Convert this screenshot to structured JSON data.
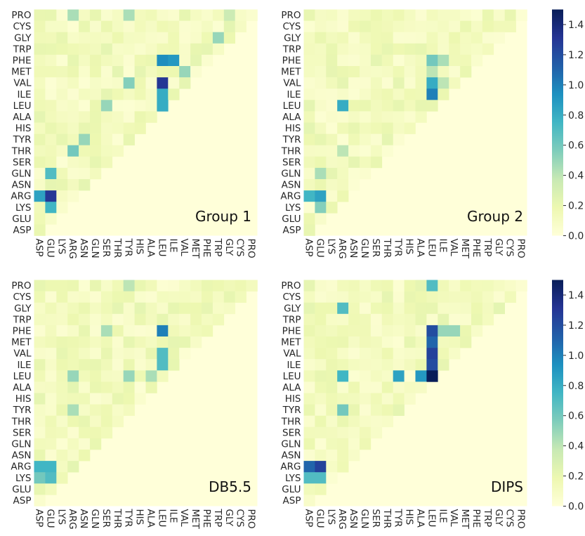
{
  "figure": {
    "residues_y_top_to_bottom": [
      "PRO",
      "CYS",
      "GLY",
      "TRP",
      "PHE",
      "MET",
      "VAL",
      "ILE",
      "LEU",
      "ALA",
      "HIS",
      "TYR",
      "THR",
      "SER",
      "GLN",
      "ASN",
      "ARG",
      "LYS",
      "GLU",
      "ASP"
    ],
    "residues_x_left_to_right": [
      "ASP",
      "GLU",
      "LYS",
      "ARG",
      "ASN",
      "GLN",
      "SER",
      "THR",
      "TYR",
      "HIS",
      "ALA",
      "LEU",
      "ILE",
      "VAL",
      "MET",
      "PHE",
      "TRP",
      "GLY",
      "CYS",
      "PRO"
    ],
    "colorbar": {
      "ticks": [
        "0.0",
        "0.2",
        "0.4",
        "0.6",
        "0.8",
        "1.0",
        "1.2",
        "1.4"
      ],
      "vmin": 0.0,
      "vmax": 1.5,
      "palette": "YlGnBu",
      "colors": [
        "#ffffd9",
        "#edf8b1",
        "#c7e9b4",
        "#7fcdbb",
        "#41b6c4",
        "#1d91c0",
        "#225ea8",
        "#253494",
        "#081d58"
      ]
    }
  },
  "chart_data": [
    {
      "type": "heatmap",
      "panel_label": "Group 1",
      "shape": "lower-triangular residue pair matrix",
      "hotspots": [
        {
          "x": "LEU",
          "y": "VAL",
          "value": 1.3
        },
        {
          "x": "LEU",
          "y": "PHE",
          "value": 0.95
        },
        {
          "x": "ILE",
          "y": "PHE",
          "value": 0.9
        },
        {
          "x": "LEU",
          "y": "ILE",
          "value": 0.8
        },
        {
          "x": "LEU",
          "y": "LEU",
          "value": 0.8
        },
        {
          "x": "GLU",
          "y": "ARG",
          "value": 1.3
        },
        {
          "x": "ASP",
          "y": "ARG",
          "value": 0.85
        },
        {
          "x": "GLU",
          "y": "LYS",
          "value": 0.75
        },
        {
          "x": "GLU",
          "y": "GLN",
          "value": 0.7
        },
        {
          "x": "ARG",
          "y": "THR",
          "value": 0.6
        },
        {
          "x": "ARG",
          "y": "PRO",
          "value": 0.45
        },
        {
          "x": "TYR",
          "y": "VAL",
          "value": 0.55
        },
        {
          "x": "TYR",
          "y": "PRO",
          "value": 0.45
        },
        {
          "x": "VAL",
          "y": "MET",
          "value": 0.5
        },
        {
          "x": "TRP",
          "y": "GLY",
          "value": 0.5
        },
        {
          "x": "SER",
          "y": "LEU",
          "value": 0.5
        },
        {
          "x": "GLY",
          "y": "PRO",
          "value": 0.35
        },
        {
          "x": "ASN",
          "y": "TYR",
          "value": 0.5
        }
      ]
    },
    {
      "type": "heatmap",
      "panel_label": "Group 2",
      "shape": "lower-triangular residue pair matrix",
      "hotspots": [
        {
          "x": "LEU",
          "y": "ILE",
          "value": 1.0
        },
        {
          "x": "LEU",
          "y": "VAL",
          "value": 0.8
        },
        {
          "x": "LEU",
          "y": "PHE",
          "value": 0.6
        },
        {
          "x": "ARG",
          "y": "LEU",
          "value": 0.8
        },
        {
          "x": "ASP",
          "y": "ARG",
          "value": 0.75
        },
        {
          "x": "GLU",
          "y": "ARG",
          "value": 0.85
        },
        {
          "x": "GLU",
          "y": "LYS",
          "value": 0.55
        },
        {
          "x": "GLU",
          "y": "GLN",
          "value": 0.45
        },
        {
          "x": "ILE",
          "y": "PHE",
          "value": 0.45
        },
        {
          "x": "ILE",
          "y": "VAL",
          "value": 0.4
        },
        {
          "x": "ARG",
          "y": "THR",
          "value": 0.4
        },
        {
          "x": "LEU",
          "y": "MET",
          "value": 0.4
        }
      ]
    },
    {
      "type": "heatmap",
      "panel_label": "DB5.5",
      "shape": "lower-triangular residue pair matrix",
      "hotspots": [
        {
          "x": "LEU",
          "y": "PHE",
          "value": 1.0
        },
        {
          "x": "LEU",
          "y": "VAL",
          "value": 0.7
        },
        {
          "x": "LEU",
          "y": "ILE",
          "value": 0.7
        },
        {
          "x": "ASP",
          "y": "ARG",
          "value": 0.75
        },
        {
          "x": "GLU",
          "y": "ARG",
          "value": 0.75
        },
        {
          "x": "ASP",
          "y": "LYS",
          "value": 0.6
        },
        {
          "x": "GLU",
          "y": "LYS",
          "value": 0.7
        },
        {
          "x": "TYR",
          "y": "LEU",
          "value": 0.5
        },
        {
          "x": "ARG",
          "y": "LEU",
          "value": 0.5
        },
        {
          "x": "SER",
          "y": "PHE",
          "value": 0.45
        },
        {
          "x": "ALA",
          "y": "LEU",
          "value": 0.45
        },
        {
          "x": "TYR",
          "y": "PRO",
          "value": 0.4
        },
        {
          "x": "ARG",
          "y": "TYR",
          "value": 0.45
        }
      ]
    },
    {
      "type": "heatmap",
      "panel_label": "DIPS",
      "shape": "lower-triangular residue pair matrix",
      "hotspots": [
        {
          "x": "LEU",
          "y": "LEU",
          "value": 1.5
        },
        {
          "x": "LEU",
          "y": "VAL",
          "value": 1.25
        },
        {
          "x": "LEU",
          "y": "ILE",
          "value": 1.2
        },
        {
          "x": "LEU",
          "y": "PHE",
          "value": 1.2
        },
        {
          "x": "LEU",
          "y": "MET",
          "value": 1.1
        },
        {
          "x": "ASP",
          "y": "ARG",
          "value": 1.1
        },
        {
          "x": "GLU",
          "y": "ARG",
          "value": 1.25
        },
        {
          "x": "ASP",
          "y": "LYS",
          "value": 0.7
        },
        {
          "x": "GLU",
          "y": "LYS",
          "value": 0.7
        },
        {
          "x": "ALA",
          "y": "LEU",
          "value": 0.9
        },
        {
          "x": "TYR",
          "y": "LEU",
          "value": 0.85
        },
        {
          "x": "ARG",
          "y": "LEU",
          "value": 0.75
        },
        {
          "x": "LEU",
          "y": "PRO",
          "value": 0.7
        },
        {
          "x": "ARG",
          "y": "GLY",
          "value": 0.7
        },
        {
          "x": "ARG",
          "y": "TYR",
          "value": 0.6
        },
        {
          "x": "ILE",
          "y": "PHE",
          "value": 0.5
        },
        {
          "x": "VAL",
          "y": "PHE",
          "value": 0.5
        }
      ]
    }
  ]
}
